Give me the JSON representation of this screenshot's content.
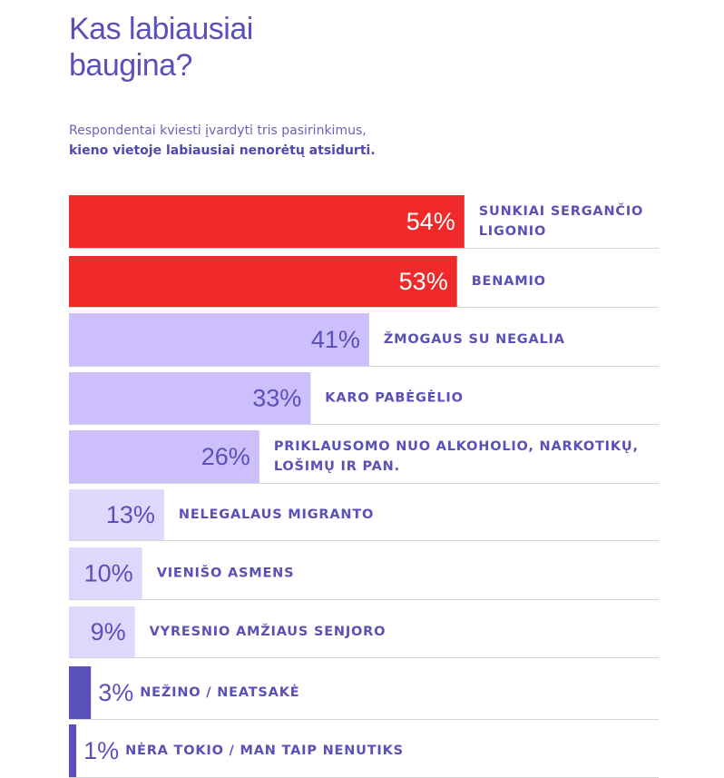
{
  "header": {
    "title_lines": [
      "Kas labiausiai",
      "baugina?"
    ],
    "subtitle_lines": [
      "Respondentai kviesti įvardyti tris pasirinkimus,",
      "kieno vietoje labiausiai nenorėtų atsidurti."
    ]
  },
  "colors": {
    "high": "#f02a2a",
    "mid": "#cdbffb",
    "low": "#e0d7fc",
    "dark": "#5a52b8",
    "label": "#5b50b8",
    "pct_light": "#ffffff",
    "pct_dark": "#5b50b8",
    "rule": "#d4d4d4"
  },
  "chart_data": {
    "type": "bar",
    "orientation": "horizontal",
    "unit": "%",
    "xlim": [
      0,
      100
    ],
    "categories": [
      [
        "SUNKIAI SERGANČIO",
        "LIGONIO"
      ],
      [
        "BENAMIO"
      ],
      [
        "ŽMOGAUS SU NEGALIA"
      ],
      [
        "KARO PABĖGĖLIO"
      ],
      [
        "PRIKLAUSOMO NUO ALKOHOLIO, NARKOTIKŲ,",
        "LOŠIMŲ IR PAN."
      ],
      [
        "NELEGALAUS MIGRANTO"
      ],
      [
        "VIENIŠO ASMENS"
      ],
      [
        "VYRESNIO AMŽIAUS SENJORO"
      ],
      [
        "NEŽINO / NEATSAKĖ"
      ],
      [
        "NĖRA TOKIO / MAN TAIP NENUTIKS"
      ]
    ],
    "values": [
      54,
      53,
      41,
      33,
      26,
      13,
      10,
      9,
      3,
      1
    ],
    "value_labels": [
      "54%",
      "53%",
      "41%",
      "33%",
      "26%",
      "13%",
      "10%",
      "9%",
      "3%",
      "1%"
    ],
    "color_groups": [
      "high",
      "high",
      "mid",
      "mid",
      "mid",
      "low",
      "low",
      "low",
      "dark",
      "dark"
    ]
  }
}
